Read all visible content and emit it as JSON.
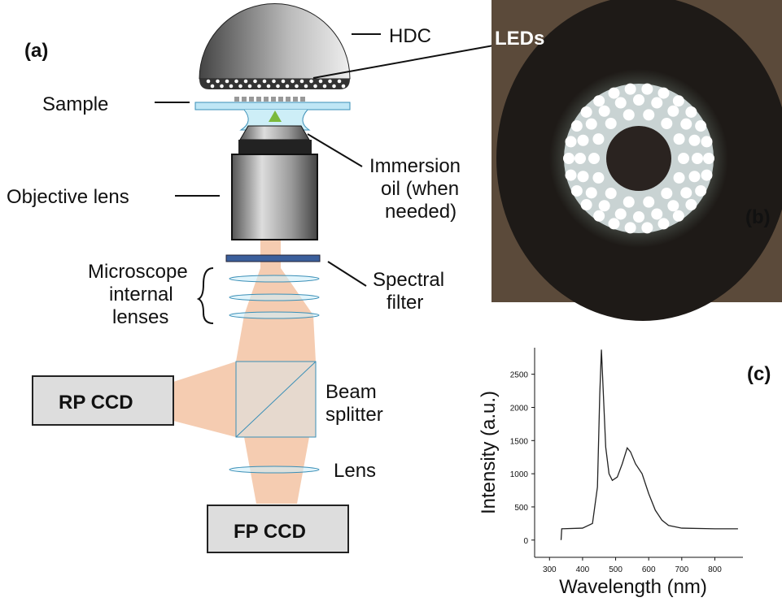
{
  "panel_a": {
    "label": "(a)",
    "hdc": "HDC",
    "sample": "Sample",
    "immersion": [
      "Immersion",
      "oil (when",
      "needed)"
    ],
    "objective": "Objective lens",
    "internal": [
      "Microscope",
      "internal",
      "lenses"
    ],
    "filter": [
      "Spectral",
      "filter"
    ],
    "rp_ccd": "RP CCD",
    "beam_splitter": [
      "Beam",
      "splitter"
    ],
    "lens": "Lens",
    "fp_ccd": "FP CCD"
  },
  "panel_b": {
    "label": "(b)",
    "leds": "LEDs"
  },
  "panel_c": {
    "label": "(c)"
  },
  "chart_data": {
    "type": "line",
    "xlabel": "Wavelength  (nm)",
    "ylabel": "Intensity  (a.u.)",
    "color": "#222222",
    "x": [
      335,
      337,
      400,
      430,
      445,
      452,
      457,
      462,
      470,
      480,
      490,
      505,
      520,
      535,
      545,
      560,
      580,
      600,
      620,
      640,
      660,
      700,
      800,
      870
    ],
    "values": [
      0,
      170,
      180,
      250,
      800,
      2200,
      2870,
      2300,
      1400,
      1000,
      900,
      950,
      1150,
      1390,
      1330,
      1150,
      1000,
      700,
      450,
      300,
      220,
      180,
      170,
      170
    ],
    "xlim": [
      255,
      885
    ],
    "ylim": [
      -260,
      2900
    ],
    "xticks": [
      300,
      400,
      500,
      600,
      700,
      800
    ],
    "yticks": [
      0,
      500,
      1000,
      1500,
      2000,
      2500
    ]
  }
}
